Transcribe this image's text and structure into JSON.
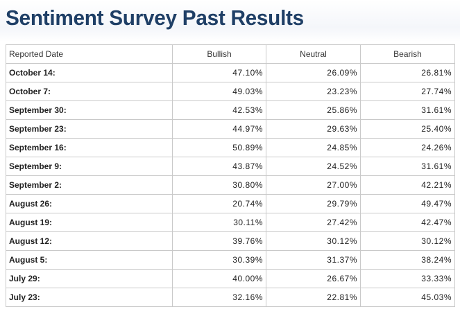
{
  "title": "Sentiment Survey Past Results",
  "table": {
    "headers": [
      "Reported Date",
      "Bullish",
      "Neutral",
      "Bearish"
    ],
    "rows": [
      {
        "date": "October 14:",
        "bullish": "47.10%",
        "neutral": "26.09%",
        "bearish": "26.81%"
      },
      {
        "date": "October 7:",
        "bullish": "49.03%",
        "neutral": "23.23%",
        "bearish": "27.74%"
      },
      {
        "date": "September 30:",
        "bullish": "42.53%",
        "neutral": "25.86%",
        "bearish": "31.61%"
      },
      {
        "date": "September 23:",
        "bullish": "44.97%",
        "neutral": "29.63%",
        "bearish": "25.40%"
      },
      {
        "date": "September 16:",
        "bullish": "50.89%",
        "neutral": "24.85%",
        "bearish": "24.26%"
      },
      {
        "date": "September 9:",
        "bullish": "43.87%",
        "neutral": "24.52%",
        "bearish": "31.61%"
      },
      {
        "date": "September 2:",
        "bullish": "30.80%",
        "neutral": "27.00%",
        "bearish": "42.21%"
      },
      {
        "date": "August 26:",
        "bullish": "20.74%",
        "neutral": "29.79%",
        "bearish": "49.47%"
      },
      {
        "date": "August 19:",
        "bullish": "30.11%",
        "neutral": "27.42%",
        "bearish": "42.47%"
      },
      {
        "date": "August 12:",
        "bullish": "39.76%",
        "neutral": "30.12%",
        "bearish": "30.12%"
      },
      {
        "date": "August 5:",
        "bullish": "30.39%",
        "neutral": "31.37%",
        "bearish": "38.24%"
      },
      {
        "date": "July 29:",
        "bullish": "40.00%",
        "neutral": "26.67%",
        "bearish": "33.33%"
      },
      {
        "date": "July 23:",
        "bullish": "32.16%",
        "neutral": "22.81%",
        "bearish": "45.03%"
      }
    ]
  }
}
